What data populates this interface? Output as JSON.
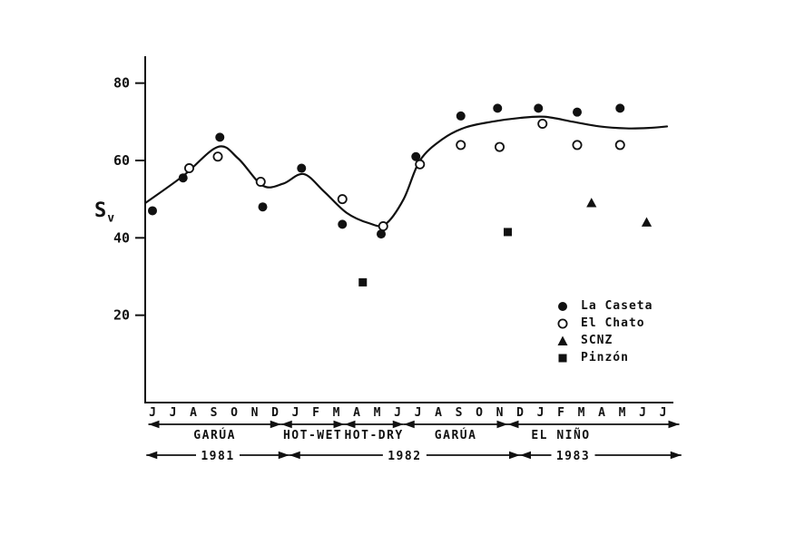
{
  "figure": {
    "background": "#ffffff",
    "ink": "#111111"
  },
  "chart_data": {
    "type": "scatter",
    "title": "",
    "ylabel_main": "S",
    "ylabel_sub": "v",
    "xlabel": "",
    "ylim": [
      0,
      85
    ],
    "y_ticks": [
      20,
      40,
      60,
      80
    ],
    "grid": false,
    "legend_position": "lower-right",
    "x_months": [
      "J",
      "J",
      "A",
      "S",
      "O",
      "N",
      "D",
      "J",
      "F",
      "M",
      "A",
      "M",
      "J",
      "J",
      "A",
      "S",
      "O",
      "N",
      "D",
      "J",
      "F",
      "M",
      "A",
      "M",
      "J",
      "J"
    ],
    "series": [
      {
        "name": "La Caseta",
        "marker": "filled-circle",
        "points": [
          [
            0,
            47
          ],
          [
            1.5,
            55.5
          ],
          [
            3.3,
            66
          ],
          [
            5.4,
            48
          ],
          [
            7.3,
            58
          ],
          [
            9.3,
            43.5
          ],
          [
            11.2,
            41
          ],
          [
            12.9,
            61
          ],
          [
            15.1,
            71.5
          ],
          [
            16.9,
            73.5
          ],
          [
            18.9,
            73.5
          ],
          [
            20.8,
            72.5
          ],
          [
            22.9,
            73.5
          ]
        ]
      },
      {
        "name": "El Chato",
        "marker": "open-circle",
        "points": [
          [
            1.8,
            58
          ],
          [
            3.2,
            61
          ],
          [
            5.3,
            54.5
          ],
          [
            9.3,
            50
          ],
          [
            11.3,
            43
          ],
          [
            13.1,
            59
          ],
          [
            15.1,
            64
          ],
          [
            17,
            63.5
          ],
          [
            19.1,
            69.5
          ],
          [
            20.8,
            64
          ],
          [
            22.9,
            64
          ]
        ]
      },
      {
        "name": "SCNZ",
        "marker": "filled-triangle",
        "points": [
          [
            21.5,
            49
          ],
          [
            24.2,
            44
          ]
        ]
      },
      {
        "name": "Pinzón",
        "marker": "filled-square",
        "points": [
          [
            10.3,
            28.5
          ],
          [
            17.4,
            41.5
          ]
        ]
      }
    ],
    "trend_line": [
      [
        -0.35,
        49
      ],
      [
        1.5,
        56
      ],
      [
        3.2,
        63.5
      ],
      [
        4.2,
        60.5
      ],
      [
        5.4,
        53.5
      ],
      [
        6.4,
        54
      ],
      [
        7.4,
        56.5
      ],
      [
        8.4,
        52
      ],
      [
        9.5,
        46.5
      ],
      [
        10.6,
        43.8
      ],
      [
        11.4,
        43.5
      ],
      [
        12.3,
        50
      ],
      [
        13.1,
        60
      ],
      [
        14.2,
        65.5
      ],
      [
        15.3,
        68.5
      ],
      [
        16.6,
        70
      ],
      [
        18,
        71
      ],
      [
        19.2,
        71.3
      ],
      [
        20.6,
        70
      ],
      [
        21.9,
        68.8
      ],
      [
        23.2,
        68.3
      ],
      [
        24.3,
        68.4
      ],
      [
        25.2,
        68.8
      ]
    ],
    "season_bands": [
      {
        "label": "GARÚA",
        "start": -0.2,
        "end": 6.3
      },
      {
        "label": "HOT-WET",
        "start": 6.3,
        "end": 9.4
      },
      {
        "label": "HOT-DRY",
        "start": 9.4,
        "end": 12.3
      },
      {
        "label": "GARÚA",
        "start": 12.3,
        "end": 17.4
      },
      {
        "label": "EL NIÑO",
        "start": 17.4,
        "end": 25.8,
        "label_at": 20.0
      }
    ],
    "year_bands": [
      {
        "label": "1981",
        "start": -0.3,
        "end": 6.7
      },
      {
        "label": "1982",
        "start": 6.7,
        "end": 18.0
      },
      {
        "label": "1983",
        "start": 18.0,
        "end": 25.9,
        "label_at": 20.6
      }
    ],
    "legend": [
      {
        "label": "La Caseta",
        "marker": "filled-circle"
      },
      {
        "label": "El Chato",
        "marker": "open-circle"
      },
      {
        "label": "SCNZ",
        "marker": "filled-triangle"
      },
      {
        "label": "Pinzón",
        "marker": "filled-square"
      }
    ]
  }
}
